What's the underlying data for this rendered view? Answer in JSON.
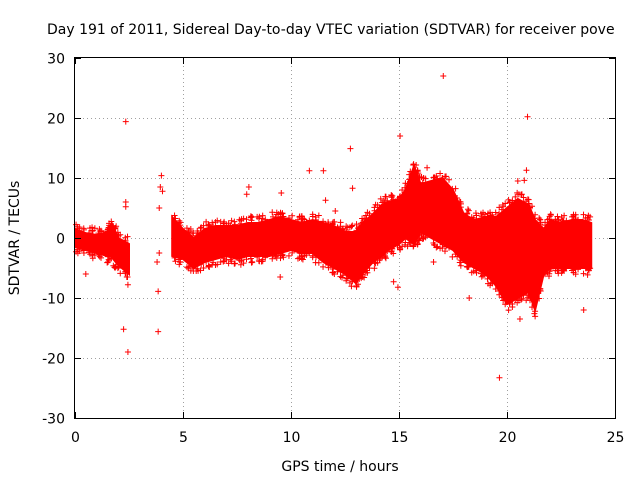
{
  "chart_data": {
    "type": "scatter",
    "title": "Day 191 of 2011, Sidereal Day-to-day VTEC variation (SDTVAR) for receiver pove",
    "xlabel": "GPS time / hours",
    "ylabel": "SDTVAR / TECUs",
    "xlim": [
      0,
      25
    ],
    "ylim": [
      -30,
      30
    ],
    "xticks": [
      0,
      5,
      10,
      15,
      20,
      25
    ],
    "yticks": [
      -30,
      -20,
      -10,
      0,
      10,
      20,
      30
    ],
    "grid": true,
    "marker": "+",
    "color": "#ff0000",
    "series": [
      {
        "name": "SDTVAR",
        "band": [
          [
            0.0,
            -1.5,
            1.5
          ],
          [
            0.5,
            -2.0,
            0.8
          ],
          [
            1.0,
            -2.5,
            0.5
          ],
          [
            1.5,
            -3.0,
            1.0
          ],
          [
            1.7,
            -3.2,
            2.5
          ],
          [
            2.0,
            -4.5,
            0.0
          ],
          [
            2.5,
            -6.0,
            -1.0
          ],
          [
            4.5,
            -3.0,
            3.5
          ],
          [
            5.0,
            -3.5,
            1.5
          ],
          [
            5.5,
            -5.0,
            0.0
          ],
          [
            6.0,
            -4.0,
            1.5
          ],
          [
            6.5,
            -3.5,
            2.0
          ],
          [
            7.0,
            -3.0,
            2.0
          ],
          [
            7.5,
            -3.5,
            2.0
          ],
          [
            8.0,
            -3.0,
            2.5
          ],
          [
            8.5,
            -3.0,
            2.5
          ],
          [
            9.0,
            -3.0,
            3.0
          ],
          [
            9.5,
            -2.5,
            3.5
          ],
          [
            10.0,
            -2.0,
            3.0
          ],
          [
            10.5,
            -2.5,
            2.5
          ],
          [
            11.0,
            -2.5,
            3.0
          ],
          [
            11.5,
            -4.0,
            2.5
          ],
          [
            12.0,
            -5.0,
            2.0
          ],
          [
            12.5,
            -6.0,
            1.0
          ],
          [
            13.0,
            -7.5,
            1.0
          ],
          [
            13.3,
            -6.0,
            2.5
          ],
          [
            13.8,
            -4.0,
            4.0
          ],
          [
            14.2,
            -3.0,
            5.5
          ],
          [
            14.5,
            -2.0,
            6.0
          ],
          [
            15.0,
            -1.0,
            6.5
          ],
          [
            15.3,
            0.0,
            8.0
          ],
          [
            15.7,
            -1.0,
            12.0
          ],
          [
            16.0,
            1.0,
            9.0
          ],
          [
            16.5,
            0.0,
            9.5
          ],
          [
            17.0,
            -1.0,
            10.0
          ],
          [
            17.5,
            -2.0,
            8.0
          ],
          [
            18.0,
            -4.0,
            4.0
          ],
          [
            18.5,
            -5.0,
            3.0
          ],
          [
            19.0,
            -6.0,
            3.5
          ],
          [
            19.5,
            -8.0,
            3.5
          ],
          [
            20.0,
            -11.0,
            5.0
          ],
          [
            20.5,
            -10.0,
            6.5
          ],
          [
            21.0,
            -9.0,
            5.5
          ],
          [
            21.3,
            -12.0,
            3.0
          ],
          [
            21.7,
            -6.0,
            1.5
          ],
          [
            22.0,
            -5.0,
            3.0
          ],
          [
            22.5,
            -5.0,
            2.5
          ],
          [
            23.0,
            -5.0,
            3.0
          ],
          [
            23.5,
            -5.0,
            3.0
          ],
          [
            23.9,
            -5.0,
            2.5
          ]
        ],
        "outliers": [
          [
            2.35,
            19.4
          ],
          [
            2.35,
            6.0
          ],
          [
            2.35,
            5.2
          ],
          [
            2.35,
            -2.0
          ],
          [
            2.4,
            -6.5
          ],
          [
            2.45,
            -7.8
          ],
          [
            2.25,
            -15.2
          ],
          [
            2.45,
            -19.0
          ],
          [
            3.85,
            -15.6
          ],
          [
            3.85,
            -8.9
          ],
          [
            3.8,
            -4.0
          ],
          [
            3.9,
            -2.5
          ],
          [
            3.95,
            8.5
          ],
          [
            4.0,
            10.4
          ],
          [
            4.05,
            7.8
          ],
          [
            3.9,
            5.0
          ],
          [
            0.5,
            -6.0
          ],
          [
            8.05,
            8.5
          ],
          [
            7.95,
            7.3
          ],
          [
            9.55,
            7.5
          ],
          [
            9.5,
            -6.5
          ],
          [
            10.85,
            11.2
          ],
          [
            11.5,
            11.2
          ],
          [
            11.6,
            6.3
          ],
          [
            12.05,
            4.5
          ],
          [
            12.75,
            14.9
          ],
          [
            12.85,
            8.3
          ],
          [
            14.75,
            -7.3
          ],
          [
            14.95,
            -8.2
          ],
          [
            15.05,
            17.0
          ],
          [
            16.3,
            11.7
          ],
          [
            16.6,
            -4.0
          ],
          [
            17.05,
            27.0
          ],
          [
            18.25,
            -10.0
          ],
          [
            19.65,
            -23.3
          ],
          [
            20.95,
            20.2
          ],
          [
            20.9,
            11.3
          ],
          [
            20.8,
            9.6
          ],
          [
            20.5,
            9.5
          ],
          [
            20.6,
            -13.5
          ],
          [
            20.25,
            -11.0
          ],
          [
            21.3,
            -12.2
          ],
          [
            23.55,
            -12.0
          ]
        ]
      }
    ]
  }
}
